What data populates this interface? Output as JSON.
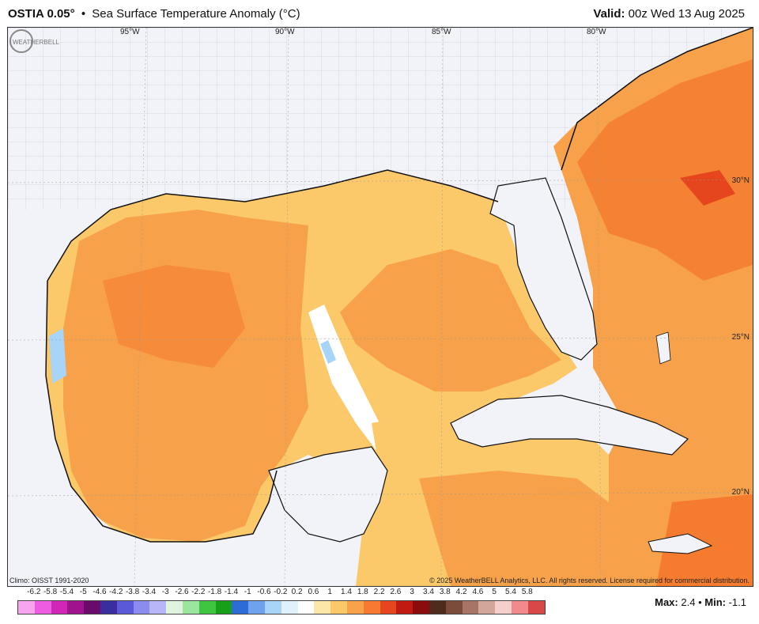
{
  "header": {
    "model": "OSTIA 0.05°",
    "separator": "•",
    "field": "Sea Surface Temperature Anomaly (°C)",
    "valid_label": "Valid:",
    "valid_value": "00z Wed 13 Aug 2025"
  },
  "map": {
    "lon_labels": [
      "95°W",
      "90°W",
      "85°W",
      "80°W"
    ],
    "lat_labels": [
      "30°N",
      "25°N",
      "20°N"
    ],
    "climo": "Climo: OISST 1991-2020",
    "copyright": "© 2025 WeatherBELL Analytics, LLC. All rights reserved. License required for commercial distribution.",
    "logo_text": "WEATHERBELL"
  },
  "legend": {
    "ticks": [
      "-6.2",
      "-5.8",
      "-5.4",
      "-5",
      "-4.6",
      "-4.2",
      "-3.8",
      "-3.4",
      "-3",
      "-2.6",
      "-2.2",
      "-1.8",
      "-1.4",
      "-1",
      "-0.6",
      "-0.2",
      "0.2",
      "0.6",
      "1",
      "1.4",
      "1.8",
      "2.2",
      "2.6",
      "3",
      "3.4",
      "3.8",
      "4.2",
      "4.6",
      "5",
      "5.4",
      "5.8"
    ],
    "colors": [
      "#f7a6ee",
      "#ee5ce0",
      "#d127b8",
      "#a0138f",
      "#6a0a6a",
      "#3a2d9e",
      "#5a5ad8",
      "#8c8cf0",
      "#b7b7f7",
      "#dff3de",
      "#9ae69a",
      "#3fc43f",
      "#16a019",
      "#2b6cd8",
      "#6ea2ec",
      "#a7d4f7",
      "#dff2fb",
      "#ffffff",
      "#fde7a8",
      "#fbc86a",
      "#f7a24a",
      "#f57c2e",
      "#e6461e",
      "#c11a12",
      "#8a0c0c",
      "#4d2a1c",
      "#7a4a3a",
      "#a97468",
      "#d3a69c",
      "#f4d0cc",
      "#f08a8a",
      "#d84747"
    ],
    "max_label": "Max:",
    "max_value": "2.4",
    "min_label": "Min:",
    "min_value": "-1.1"
  }
}
